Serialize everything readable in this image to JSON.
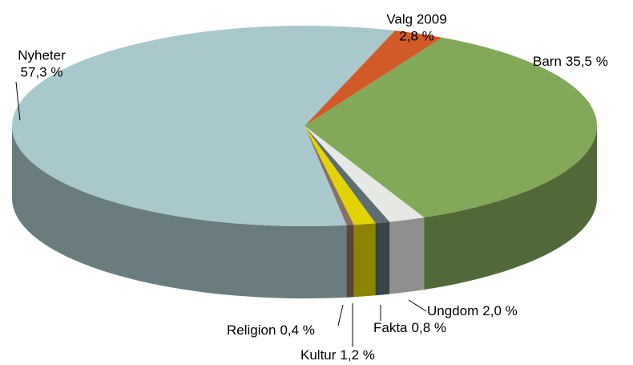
{
  "chart_data": {
    "type": "pie",
    "categories": [
      "Valg 2009",
      "Barn",
      "Ungdom",
      "Fakta",
      "Kultur",
      "Religion",
      "Nyheter"
    ],
    "values": [
      2.8,
      35.5,
      2.0,
      0.8,
      1.2,
      0.4,
      57.3
    ],
    "value_labels": [
      "2,8 %",
      "35,5 %",
      "2,0 %",
      "0,8 %",
      "1,2 %",
      "0,4 %",
      "57,3 %"
    ],
    "colors": [
      "#d05a28",
      "#82a85a",
      "#e6e8e4",
      "#5c6e72",
      "#e2d400",
      "#8a7060",
      "#a9c8cc"
    ]
  }
}
